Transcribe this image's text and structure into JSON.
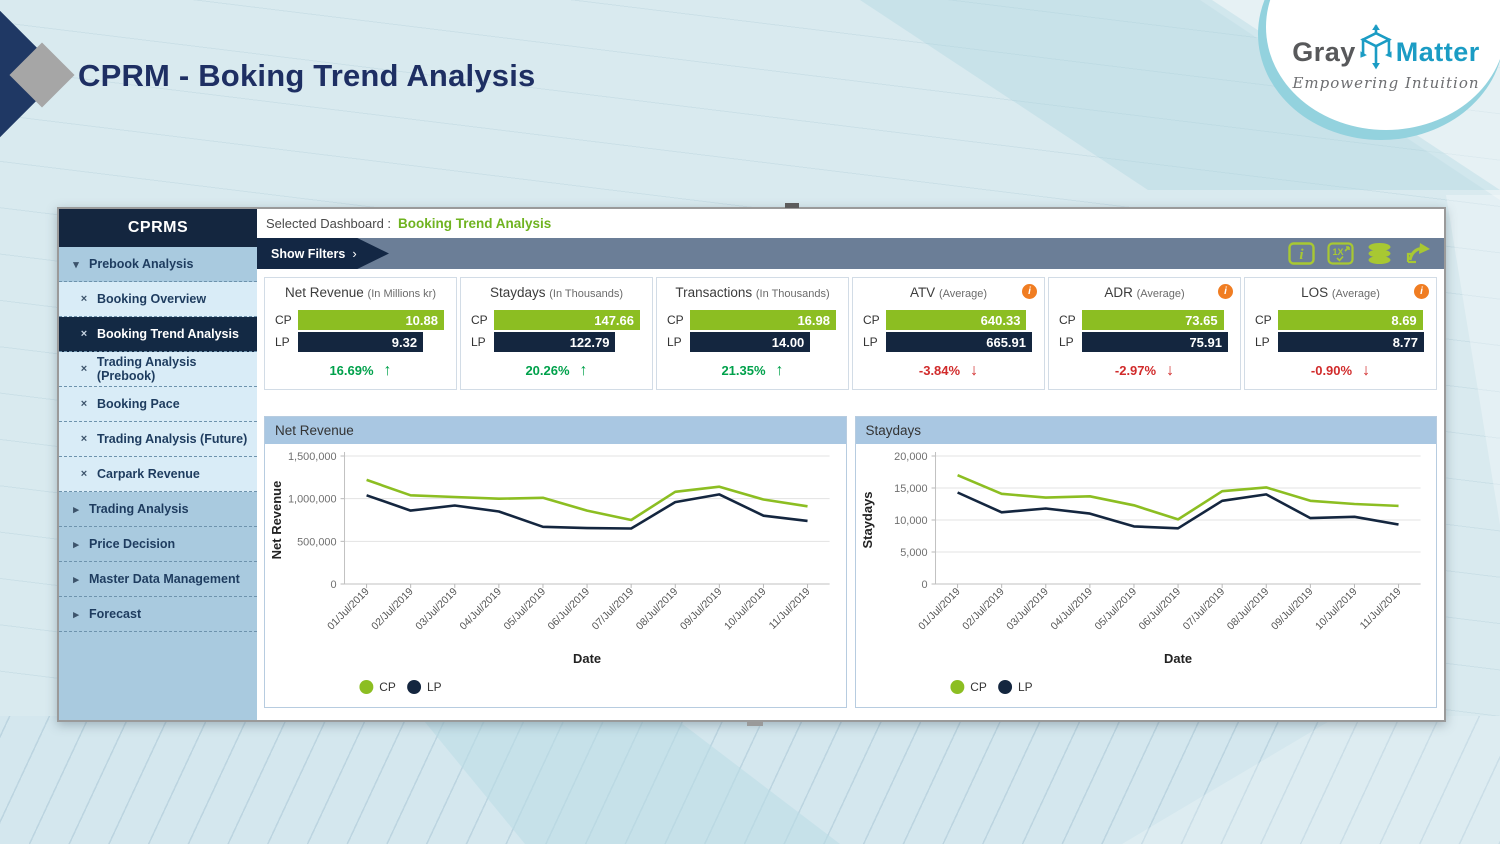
{
  "page_title": "CPRM - Boking Trend Analysis",
  "logo": {
    "brand_gray": "Gray",
    "brand_blue": "Matter",
    "tagline": "Empowering Intuition"
  },
  "colors": {
    "accent_green": "#8cbe22",
    "navy": "#14263f",
    "positive_green": "#00a14b",
    "negative_red": "#d12b2b",
    "icon_green": "#a8c832",
    "panel_header_blue": "#a9c7e2",
    "selected_dashboard_green": "#6fb320",
    "filterbar_gray": "#6b7e97",
    "info_orange": "#f07d22"
  },
  "sidebar": {
    "header": "CPRMS",
    "items": [
      {
        "label": "Prebook Analysis",
        "type": "group-expanded",
        "selected": false
      },
      {
        "label": "Booking Overview",
        "type": "sub",
        "selected": false
      },
      {
        "label": "Booking Trend Analysis",
        "type": "sub",
        "selected": true
      },
      {
        "label": "Trading Analysis (Prebook)",
        "type": "sub",
        "selected": false
      },
      {
        "label": "Booking Pace",
        "type": "sub",
        "selected": false
      },
      {
        "label": "Trading Analysis (Future)",
        "type": "sub",
        "selected": false
      },
      {
        "label": "Carpark Revenue",
        "type": "sub",
        "selected": false
      },
      {
        "label": "Trading Analysis",
        "type": "group",
        "selected": false
      },
      {
        "label": "Price Decision",
        "type": "group",
        "selected": false
      },
      {
        "label": "Master Data Management",
        "type": "group",
        "selected": false
      },
      {
        "label": "Forecast",
        "type": "group",
        "selected": false
      }
    ]
  },
  "topbar": {
    "label": "Selected Dashboard :",
    "value": "Booking Trend Analysis"
  },
  "filterbar": {
    "show_filters_label": "Show Filters",
    "chevron": "›",
    "icons": [
      {
        "name": "info-icon"
      },
      {
        "name": "zoom-1x-icon",
        "label": "1X"
      },
      {
        "name": "database-icon"
      },
      {
        "name": "export-icon"
      }
    ]
  },
  "legend": {
    "cp": "CP",
    "lp": "LP"
  },
  "kpis": [
    {
      "title": "Net Revenue",
      "unit": "(In Millions kr)",
      "cp": "10.88",
      "lp": "9.32",
      "change": "16.69%",
      "direction": "up",
      "info_icon": false
    },
    {
      "title": "Staydays",
      "unit": "(In Thousands)",
      "cp": "147.66",
      "lp": "122.79",
      "change": "20.26%",
      "direction": "up",
      "info_icon": false
    },
    {
      "title": "Transactions",
      "unit": "(In Thousands)",
      "cp": "16.98",
      "lp": "14.00",
      "change": "21.35%",
      "direction": "up",
      "info_icon": false
    },
    {
      "title": "ATV",
      "unit": "(Average)",
      "cp": "640.33",
      "lp": "665.91",
      "change": "-3.84%",
      "direction": "down",
      "info_icon": true
    },
    {
      "title": "ADR",
      "unit": "(Average)",
      "cp": "73.65",
      "lp": "75.91",
      "change": "-2.97%",
      "direction": "down",
      "info_icon": true
    },
    {
      "title": "LOS",
      "unit": "(Average)",
      "cp": "8.69",
      "lp": "8.77",
      "change": "-0.90%",
      "direction": "down",
      "info_icon": true
    }
  ],
  "chart_data": [
    {
      "type": "line",
      "title": "Net Revenue",
      "xlabel": "Date",
      "ylabel": "Net Revenue",
      "ylim": [
        0,
        1500000
      ],
      "yticks": [
        {
          "v": 0,
          "label": "0"
        },
        {
          "v": 500000,
          "label": "500,000"
        },
        {
          "v": 1000000,
          "label": "1,000,000"
        },
        {
          "v": 1500000,
          "label": "1,500,000"
        }
      ],
      "x": [
        "01/Jul/2019",
        "02/Jul/2019",
        "03/Jul/2019",
        "04/Jul/2019",
        "05/Jul/2019",
        "06/Jul/2019",
        "07/Jul/2019",
        "08/Jul/2019",
        "09/Jul/2019",
        "10/Jul/2019",
        "11/Jul/2019"
      ],
      "series": [
        {
          "name": "CP",
          "color": "#8cbe22",
          "values": [
            1220000,
            1040000,
            1020000,
            1000000,
            1010000,
            860000,
            750000,
            1080000,
            1140000,
            990000,
            910000
          ]
        },
        {
          "name": "LP",
          "color": "#14263f",
          "values": [
            1040000,
            860000,
            920000,
            850000,
            670000,
            655000,
            650000,
            960000,
            1050000,
            800000,
            740000
          ]
        }
      ],
      "legend_position": "bottom-left",
      "grid": true
    },
    {
      "type": "line",
      "title": "Staydays",
      "xlabel": "Date",
      "ylabel": "Staydays",
      "ylim": [
        0,
        20000
      ],
      "yticks": [
        {
          "v": 0,
          "label": "0"
        },
        {
          "v": 5000,
          "label": "5,000"
        },
        {
          "v": 10000,
          "label": "10,000"
        },
        {
          "v": 15000,
          "label": "15,000"
        },
        {
          "v": 20000,
          "label": "20,000"
        }
      ],
      "x": [
        "01/Jul/2019",
        "02/Jul/2019",
        "03/Jul/2019",
        "04/Jul/2019",
        "05/Jul/2019",
        "06/Jul/2019",
        "07/Jul/2019",
        "08/Jul/2019",
        "09/Jul/2019",
        "10/Jul/2019",
        "11/Jul/2019"
      ],
      "series": [
        {
          "name": "CP",
          "color": "#8cbe22",
          "values": [
            17000,
            14100,
            13500,
            13700,
            12300,
            10100,
            14500,
            15100,
            13000,
            12500,
            12200
          ]
        },
        {
          "name": "LP",
          "color": "#14263f",
          "values": [
            14300,
            11200,
            11800,
            11000,
            9000,
            8700,
            13000,
            14000,
            10300,
            10500,
            9300
          ]
        }
      ],
      "legend_position": "bottom-left",
      "grid": true
    }
  ]
}
